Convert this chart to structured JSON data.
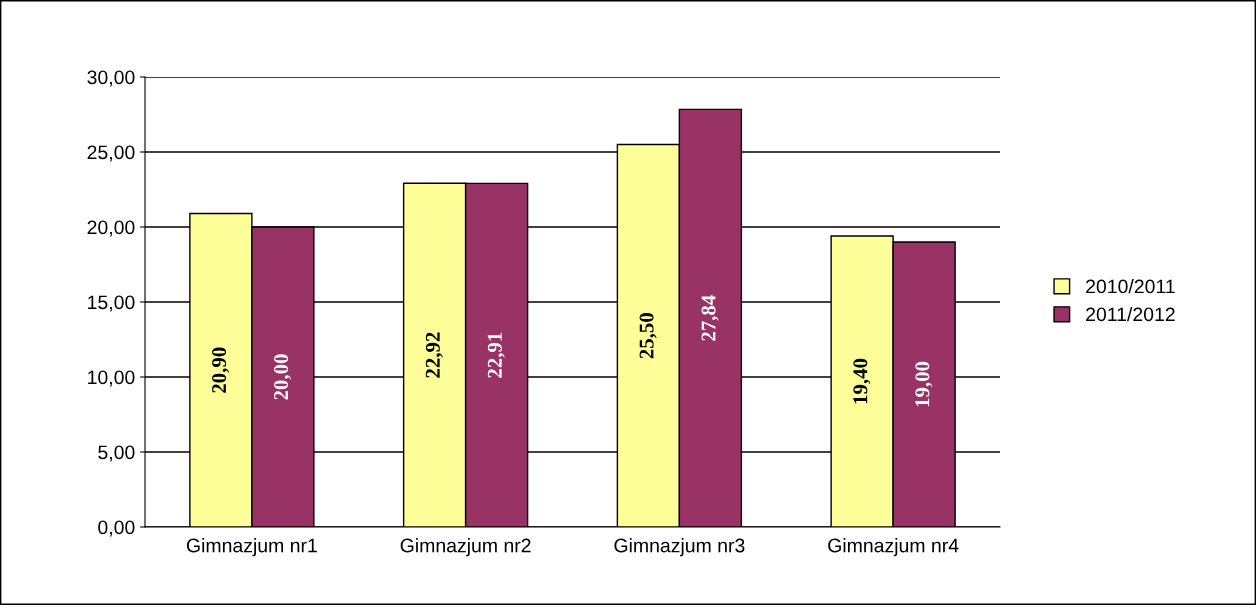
{
  "chart_data": {
    "type": "bar",
    "categories": [
      "Gimnazjum nr1",
      "Gimnazjum nr2",
      "Gimnazjum nr3",
      "Gimnazjum nr4"
    ],
    "series": [
      {
        "name": "2010/2011",
        "color": "#ffff99",
        "values": [
          20.9,
          22.92,
          25.5,
          19.4
        ],
        "value_labels": [
          "20,90",
          "22,92",
          "25,50",
          "19,40"
        ]
      },
      {
        "name": "2011/2012",
        "color": "#993366",
        "values": [
          20.0,
          22.91,
          27.84,
          19.0
        ],
        "value_labels": [
          "20,00",
          "22,91",
          "27,84",
          "19,00"
        ]
      }
    ],
    "ylim": [
      0,
      30
    ],
    "yticks": [
      {
        "value": 0,
        "label": "0,00"
      },
      {
        "value": 5,
        "label": "5,00"
      },
      {
        "value": 10,
        "label": "10,00"
      },
      {
        "value": 15,
        "label": "15,00"
      },
      {
        "value": 20,
        "label": "20,00"
      },
      {
        "value": 25,
        "label": "25,00"
      },
      {
        "value": 30,
        "label": "30,00"
      }
    ],
    "grid": "y",
    "legend": "right"
  }
}
